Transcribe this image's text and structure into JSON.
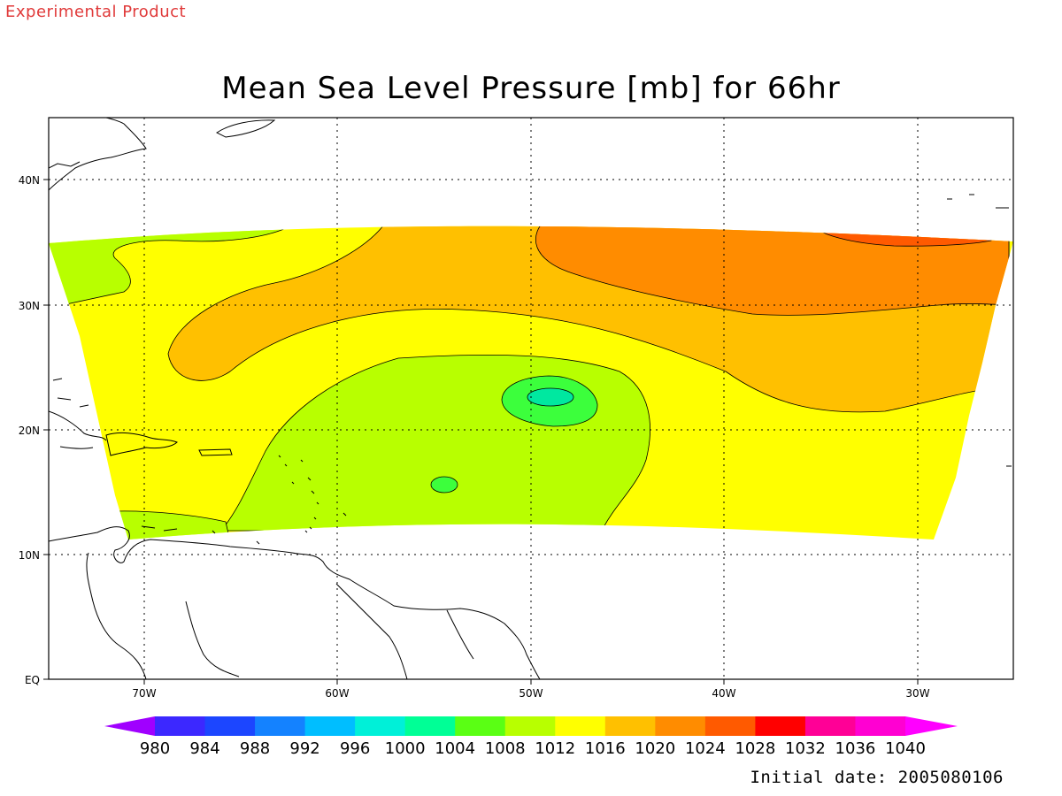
{
  "watermark": "Experimental Product",
  "title": "Mean Sea Level Pressure [mb] for 66hr",
  "initial_date": "Initial date: 2005080106",
  "map": {
    "lat_labels": [
      "40N",
      "30N",
      "20N",
      "10N",
      "EQ"
    ],
    "lon_labels": [
      "70W",
      "60W",
      "50W",
      "40W",
      "30W"
    ],
    "fill_colors": {
      "1008": "#b8ff00",
      "1012": "#ffff00",
      "1016": "#ffc000",
      "1020": "#ff8c00",
      "1024": "#ff5a00",
      "1004": "#3cff3c",
      "1000": "#00e8a0"
    },
    "low_center_value": "1000",
    "land_color": "#ffffff",
    "grid_style": "dotted"
  },
  "colorbar": {
    "labels": [
      "980",
      "984",
      "988",
      "992",
      "996",
      "1000",
      "1004",
      "1008",
      "1012",
      "1016",
      "1020",
      "1024",
      "1028",
      "1032",
      "1036",
      "1040"
    ],
    "colors": [
      "#a000ff",
      "#3c28ff",
      "#1c46ff",
      "#1482ff",
      "#00beff",
      "#00f0d8",
      "#00ff96",
      "#5aff14",
      "#b8ff00",
      "#ffff00",
      "#ffc000",
      "#ff8c00",
      "#ff5a00",
      "#ff0000",
      "#ff0096",
      "#ff00d2",
      "#ff00ff"
    ]
  }
}
